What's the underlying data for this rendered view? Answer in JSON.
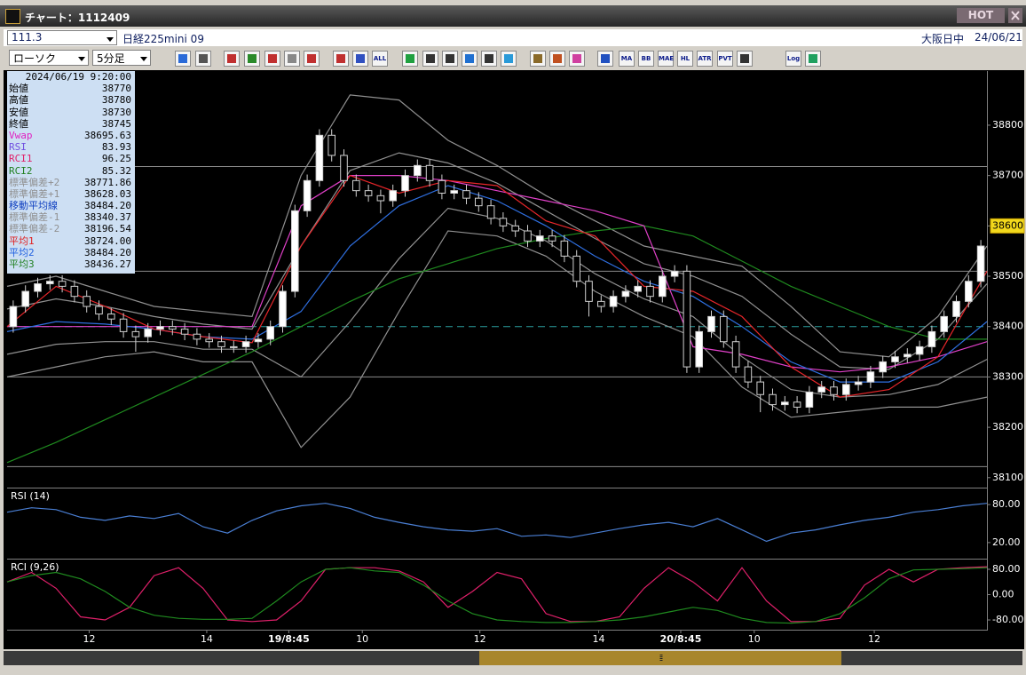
{
  "window": {
    "title": "チャート：1112409",
    "hot_button": "HOT"
  },
  "header": {
    "code": "111.3",
    "instrument": "日経225mini 09",
    "session": "大阪日中",
    "date": "24/06/21"
  },
  "toolbar": {
    "chart_type": "ローソク",
    "interval": "5分足",
    "buttons": [
      "ALL",
      "MA",
      "BB",
      "MAE",
      "HL",
      "ATR",
      "PVT",
      "Log"
    ]
  },
  "info_panel": {
    "datetime": "2024/06/19 9:20:00",
    "rows": [
      {
        "label": "始値",
        "value": "38770",
        "color": "#000000"
      },
      {
        "label": "高値",
        "value": "38780",
        "color": "#000000"
      },
      {
        "label": "安値",
        "value": "38730",
        "color": "#000000"
      },
      {
        "label": "終値",
        "value": "38745",
        "color": "#000000"
      },
      {
        "label": "Vwap",
        "value": "38695.63",
        "color": "#e020c0"
      },
      {
        "label": "RSI",
        "value": "83.93",
        "color": "#7050e0"
      },
      {
        "label": "RCI1",
        "value": "96.25",
        "color": "#e0206a"
      },
      {
        "label": "RCI2",
        "value": "85.32",
        "color": "#208020"
      },
      {
        "label": "標準偏差+2",
        "value": "38771.86",
        "color": "#909090"
      },
      {
        "label": "標準偏差+1",
        "value": "38628.03",
        "color": "#909090"
      },
      {
        "label": "移動平均線",
        "value": "38484.20",
        "color": "#1040c0"
      },
      {
        "label": "標準偏差-1",
        "value": "38340.37",
        "color": "#909090"
      },
      {
        "label": "標準偏差-2",
        "value": "38196.54",
        "color": "#909090"
      },
      {
        "label": "平均1",
        "value": "38724.00",
        "color": "#e02020"
      },
      {
        "label": "平均2",
        "value": "38484.20",
        "color": "#2060e0"
      },
      {
        "label": "平均3",
        "value": "38436.27",
        "color": "#208020"
      }
    ]
  },
  "chart_data": [
    {
      "type": "candlestick",
      "xlim": [
        0,
        80
      ],
      "ylim": [
        38082,
        38904
      ],
      "xticks": [
        {
          "value": 6.7,
          "label": "12"
        },
        {
          "value": 16.3,
          "label": "14"
        },
        {
          "value": 23,
          "label": "19/8:45"
        },
        {
          "value": 29,
          "label": "10"
        },
        {
          "value": 38.6,
          "label": "12"
        },
        {
          "value": 48.3,
          "label": "14"
        },
        {
          "value": 55,
          "label": "20/8:45"
        },
        {
          "value": 61,
          "label": "10"
        },
        {
          "value": 70.8,
          "label": "12"
        }
      ],
      "yticks": [
        38100,
        38200,
        38300,
        38400,
        38500,
        38600,
        38700,
        38800
      ],
      "highlight_tick": 38600,
      "up_color": "#ffffff",
      "down_color": "#000000",
      "wick_color": "#d0d0d0",
      "reference_lines": [
        38718,
        38510,
        38300,
        38122
      ],
      "reference_line_color": "#8a8a8a",
      "dashed_line": 38400,
      "dashed_line_color": "#2a9d9d",
      "open": [
        38400,
        38440,
        38470,
        38485,
        38490,
        38480,
        38460,
        38440,
        38425,
        38415,
        38390,
        38380,
        38395,
        38400,
        38395,
        38385,
        38375,
        38370,
        38360,
        38360,
        38370,
        38375,
        38400,
        38470,
        38630,
        38690,
        38780,
        38740,
        38690,
        38670,
        38660,
        38650,
        38670,
        38700,
        38720,
        38690,
        38665,
        38670,
        38655,
        38640,
        38615,
        38600,
        38590,
        38570,
        38580,
        38570,
        38540,
        38490,
        38450,
        38440,
        38460,
        38470,
        38480,
        38460,
        38500,
        38510,
        38320,
        38390,
        38420,
        38370,
        38320,
        38290,
        38265,
        38245,
        38250,
        38240,
        38270,
        38280,
        38265,
        38285,
        38290,
        38310,
        38330,
        38340,
        38345,
        38360,
        38390,
        38420,
        38450,
        38490
      ],
      "high": [
        38452,
        38482,
        38497,
        38502,
        38502,
        38492,
        38472,
        38452,
        38437,
        38427,
        38402,
        38407,
        38412,
        38412,
        38407,
        38397,
        38387,
        38382,
        38372,
        38382,
        38387,
        38412,
        38482,
        38642,
        38702,
        38792,
        38792,
        38752,
        38702,
        38682,
        38672,
        38682,
        38712,
        38732,
        38732,
        38702,
        38682,
        38682,
        38667,
        38652,
        38627,
        38612,
        38602,
        38592,
        38592,
        38582,
        38552,
        38502,
        38462,
        38472,
        38482,
        38492,
        38492,
        38512,
        38522,
        38522,
        38402,
        38432,
        38432,
        38382,
        38332,
        38302,
        38277,
        38262,
        38262,
        38282,
        38292,
        38292,
        38297,
        38302,
        38322,
        38342,
        38352,
        38357,
        38372,
        38402,
        38432,
        38462,
        38502,
        38572
      ],
      "low": [
        38388,
        38428,
        38458,
        38473,
        38468,
        38448,
        38428,
        38413,
        38403,
        38378,
        38350,
        38368,
        38383,
        38383,
        38373,
        38363,
        38358,
        38348,
        38348,
        38348,
        38358,
        38363,
        38388,
        38458,
        38618,
        38678,
        38728,
        38678,
        38658,
        38648,
        38625,
        38638,
        38658,
        38688,
        38678,
        38653,
        38653,
        38643,
        38628,
        38603,
        38588,
        38578,
        38558,
        38558,
        38558,
        38528,
        38478,
        38420,
        38428,
        38428,
        38448,
        38458,
        38448,
        38448,
        38488,
        38308,
        38308,
        38378,
        38358,
        38308,
        38278,
        38230,
        38233,
        38233,
        38228,
        38228,
        38258,
        38253,
        38253,
        38273,
        38278,
        38298,
        38318,
        38328,
        38333,
        38348,
        38378,
        38408,
        38438,
        38478
      ],
      "close": [
        38440,
        38470,
        38485,
        38490,
        38480,
        38460,
        38440,
        38425,
        38415,
        38390,
        38380,
        38395,
        38400,
        38395,
        38385,
        38375,
        38370,
        38360,
        38360,
        38370,
        38375,
        38400,
        38470,
        38630,
        38690,
        38780,
        38740,
        38690,
        38670,
        38660,
        38650,
        38670,
        38700,
        38720,
        38690,
        38665,
        38670,
        38655,
        38640,
        38615,
        38600,
        38590,
        38570,
        38580,
        38570,
        38540,
        38490,
        38450,
        38440,
        38460,
        38470,
        38480,
        38460,
        38500,
        38510,
        38320,
        38390,
        38420,
        38370,
        38320,
        38290,
        38265,
        38245,
        38250,
        38240,
        38270,
        38280,
        38265,
        38285,
        38290,
        38310,
        38330,
        38340,
        38345,
        38360,
        38390,
        38420,
        38450,
        38490,
        38560
      ],
      "lines": {
        "x": [
          0,
          4,
          8,
          12,
          16,
          20,
          24,
          28,
          32,
          36,
          40,
          44,
          48,
          52,
          56,
          60,
          64,
          68,
          72,
          76,
          80
        ],
        "series": [
          {
            "color": "#909090",
            "values": [
              38480,
              38500,
              38470,
              38440,
              38430,
              38420,
              38700,
              38860,
              38850,
              38770,
              38720,
              38660,
              38610,
              38560,
              38540,
              38520,
              38440,
              38350,
              38340,
              38420,
              38560
            ]
          },
          {
            "color": "#909090",
            "values": [
              38435,
              38455,
              38440,
              38420,
              38405,
              38395,
              38560,
              38710,
              38745,
              38725,
              38685,
              38630,
              38575,
              38525,
              38500,
              38460,
              38385,
              38320,
              38315,
              38375,
              38485
            ]
          },
          {
            "color": "#909090",
            "values": [
              38345,
              38365,
              38370,
              38370,
              38355,
              38355,
              38300,
              38410,
              38535,
              38635,
              38615,
              38570,
              38505,
              38455,
              38420,
              38340,
              38275,
              38260,
              38265,
              38285,
              38335
            ]
          },
          {
            "color": "#909090",
            "values": [
              38300,
              38320,
              38340,
              38350,
              38330,
              38330,
              38160,
              38260,
              38430,
              38590,
              38580,
              38540,
              38470,
              38420,
              38380,
              38280,
              38220,
              38230,
              38240,
              38240,
              38260
            ]
          },
          {
            "color": "#1f8a1f",
            "values": [
              38130,
              38170,
              38215,
              38260,
              38305,
              38350,
              38400,
              38450,
              38495,
              38525,
              38555,
              38575,
              38590,
              38600,
              38580,
              38530,
              38480,
              38440,
              38400,
              38375,
              38375
            ]
          },
          {
            "color": "#e040c8",
            "values": [
              38400,
              38400,
              38400,
              38400,
              38400,
              38400,
              38640,
              38700,
              38700,
              38690,
              38670,
              38650,
              38630,
              38600,
              38360,
              38345,
              38320,
              38310,
              38320,
              38340,
              38370
            ]
          },
          {
            "color": "#2f6fe0",
            "values": [
              38390,
              38410,
              38405,
              38395,
              38380,
              38375,
              38430,
              38560,
              38640,
              38680,
              38650,
              38600,
              38540,
              38490,
              38460,
              38400,
              38330,
              38290,
              38290,
              38330,
              38410
            ]
          },
          {
            "color": "#e8262a",
            "values": [
              38400,
              38480,
              38440,
              38395,
              38380,
              38368,
              38560,
              38700,
              38665,
              38690,
              38680,
              38610,
              38580,
              38480,
              38470,
              38420,
              38320,
              38260,
              38275,
              38340,
              38510
            ]
          }
        ]
      }
    },
    {
      "type": "line",
      "title": "RSI (14)",
      "xlim": [
        0,
        80
      ],
      "ylim": [
        -4,
        104
      ],
      "yticks": [
        {
          "value": 80,
          "label": "80.00"
        },
        {
          "value": 20,
          "label": "20.00"
        }
      ],
      "x": [
        0,
        2,
        4,
        6,
        8,
        10,
        12,
        14,
        16,
        18,
        20,
        22,
        24,
        26,
        28,
        30,
        32,
        34,
        36,
        38,
        40,
        42,
        44,
        46,
        48,
        50,
        52,
        54,
        56,
        58,
        60,
        62,
        64,
        66,
        68,
        70,
        72,
        74,
        76,
        78,
        80
      ],
      "series": [
        {
          "color": "#4a7fd4",
          "values": [
            68,
            75,
            72,
            60,
            55,
            62,
            58,
            66,
            45,
            35,
            55,
            70,
            78,
            82,
            74,
            60,
            52,
            45,
            40,
            38,
            42,
            30,
            32,
            28,
            35,
            42,
            48,
            52,
            45,
            58,
            40,
            22,
            35,
            40,
            48,
            55,
            60,
            68,
            72,
            78,
            82
          ]
        }
      ]
    },
    {
      "type": "line",
      "title": "RCI (9,26)",
      "xlim": [
        0,
        80
      ],
      "ylim": [
        -108,
        108
      ],
      "yticks": [
        {
          "value": 80,
          "label": "80.00"
        },
        {
          "value": 0,
          "label": "0.00"
        },
        {
          "value": -80,
          "label": "-80.00"
        }
      ],
      "x": [
        0,
        2,
        4,
        6,
        8,
        10,
        12,
        14,
        16,
        18,
        20,
        22,
        24,
        26,
        28,
        30,
        32,
        34,
        36,
        38,
        40,
        42,
        44,
        46,
        48,
        50,
        52,
        54,
        56,
        58,
        60,
        62,
        64,
        66,
        68,
        70,
        72,
        74,
        76,
        78,
        80
      ],
      "series": [
        {
          "color": "#e0206a",
          "values": [
            40,
            70,
            20,
            -70,
            -80,
            -40,
            60,
            85,
            20,
            -80,
            -85,
            -80,
            -20,
            80,
            85,
            85,
            75,
            40,
            -40,
            10,
            70,
            50,
            -60,
            -85,
            -85,
            -70,
            20,
            85,
            40,
            -20,
            85,
            -20,
            -85,
            -85,
            -75,
            30,
            80,
            40,
            80,
            85,
            88
          ]
        },
        {
          "color": "#1f8a1f",
          "values": [
            40,
            60,
            70,
            50,
            10,
            -40,
            -65,
            -75,
            -78,
            -78,
            -75,
            -20,
            40,
            80,
            85,
            75,
            70,
            30,
            -20,
            -60,
            -80,
            -85,
            -88,
            -88,
            -85,
            -80,
            -70,
            -55,
            -40,
            -50,
            -75,
            -88,
            -90,
            -85,
            -60,
            -10,
            50,
            78,
            80,
            82,
            85
          ]
        }
      ]
    }
  ]
}
